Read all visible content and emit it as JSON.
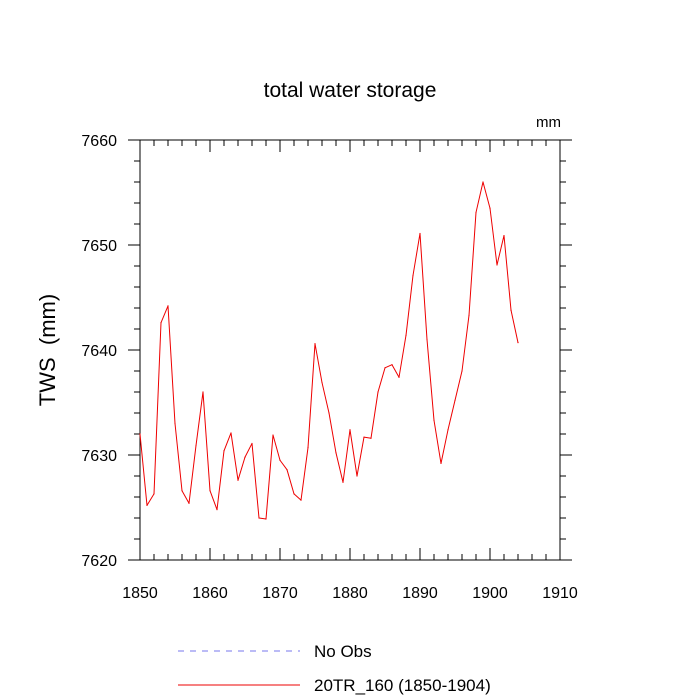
{
  "chart_data": {
    "type": "line",
    "title": "total water storage",
    "units_label": "mm",
    "xlabel": "",
    "ylabel": "TWS  (mm)",
    "xlim": [
      1850,
      1910
    ],
    "ylim": [
      7620,
      7660
    ],
    "xticks": [
      1850,
      1860,
      1870,
      1880,
      1890,
      1900,
      1910
    ],
    "yticks": [
      7620,
      7630,
      7640,
      7650,
      7660
    ],
    "grid": false,
    "legend_position": "bottom",
    "series": [
      {
        "name": "No Obs",
        "color": "#7777ee",
        "style": "dashed",
        "x": [],
        "y": []
      },
      {
        "name": "20TR_160 (1850-1904)",
        "color": "#ee0000",
        "style": "solid",
        "x": [
          1850,
          1851,
          1852,
          1853,
          1854,
          1855,
          1856,
          1857,
          1858,
          1859,
          1860,
          1861,
          1862,
          1863,
          1864,
          1865,
          1866,
          1867,
          1868,
          1869,
          1870,
          1871,
          1872,
          1873,
          1874,
          1875,
          1876,
          1877,
          1878,
          1879,
          1880,
          1881,
          1882,
          1883,
          1884,
          1885,
          1886,
          1887,
          1888,
          1889,
          1890,
          1891,
          1892,
          1893,
          1894,
          1895,
          1896,
          1897,
          1898,
          1899,
          1900,
          1901,
          1902,
          1903,
          1904
        ],
        "y": [
          7632.0,
          7625.2,
          7626.3,
          7642.6,
          7644.2,
          7633.0,
          7626.6,
          7625.4,
          7630.9,
          7636.0,
          7626.6,
          7624.8,
          7630.4,
          7632.1,
          7627.6,
          7629.8,
          7631.1,
          7624.0,
          7623.9,
          7631.9,
          7629.5,
          7628.6,
          7626.3,
          7625.7,
          7630.7,
          7640.6,
          7636.9,
          7634.0,
          7630.2,
          7627.4,
          7632.4,
          7628.0,
          7631.7,
          7631.6,
          7636.0,
          7638.3,
          7638.6,
          7637.4,
          7641.4,
          7647.1,
          7651.1,
          7641.0,
          7633.3,
          7629.2,
          7632.4,
          7635.2,
          7638.0,
          7643.3,
          7653.1,
          7656.0,
          7653.5,
          7648.1,
          7650.9,
          7643.8,
          7640.7
        ]
      }
    ]
  }
}
